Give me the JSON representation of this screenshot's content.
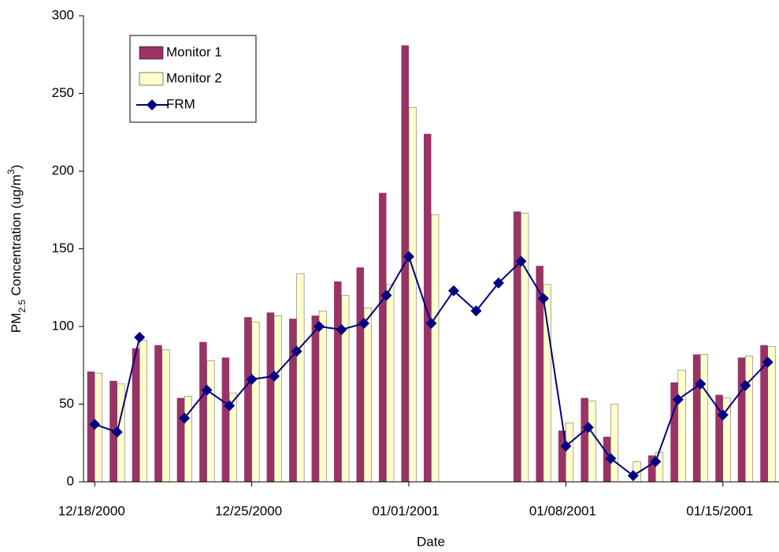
{
  "chart_data": {
    "type": "bar-line",
    "x_label": "Date",
    "y_label": [
      "PM",
      "2.5",
      " Concentration (ug/m",
      "3",
      ")"
    ],
    "categories": [
      "12/18/2000",
      null,
      null,
      null,
      null,
      null,
      null,
      "12/25/2000",
      null,
      null,
      null,
      null,
      null,
      null,
      "01/01/2001",
      null,
      null,
      null,
      null,
      null,
      null,
      "01/08/2001",
      null,
      null,
      null,
      null,
      null,
      null,
      "01/15/2001",
      null,
      null
    ],
    "series": [
      {
        "name": "Monitor 1",
        "type": "bar",
        "color": "#993366",
        "values": [
          71,
          65,
          86,
          88,
          54,
          90,
          80,
          106,
          109,
          105,
          107,
          129,
          138,
          186,
          281,
          224,
          null,
          null,
          null,
          174,
          139,
          33,
          54,
          29,
          null,
          17,
          64,
          82,
          56,
          80,
          88
        ]
      },
      {
        "name": "Monitor 2",
        "type": "bar",
        "color": "#ffffcc",
        "values": [
          70,
          63,
          91,
          85,
          55,
          78,
          57,
          103,
          107,
          134,
          110,
          120,
          112,
          127,
          241,
          172,
          null,
          null,
          null,
          173,
          127,
          38,
          52,
          50,
          13,
          19,
          72,
          82,
          54,
          81,
          87
        ]
      },
      {
        "name": "FRM",
        "type": "line",
        "color": "#000080",
        "values": [
          37,
          32,
          93,
          null,
          41,
          59,
          49,
          66,
          68,
          84,
          100,
          98,
          102,
          120,
          145,
          102,
          123,
          110,
          128,
          142,
          118,
          23,
          35,
          15,
          4,
          13,
          53,
          63,
          43,
          62,
          77
        ]
      }
    ],
    "ylim": [
      0,
      300
    ],
    "yticks": [
      0,
      50,
      100,
      150,
      200,
      250,
      300
    ],
    "grid": false,
    "legend": "upper left"
  }
}
